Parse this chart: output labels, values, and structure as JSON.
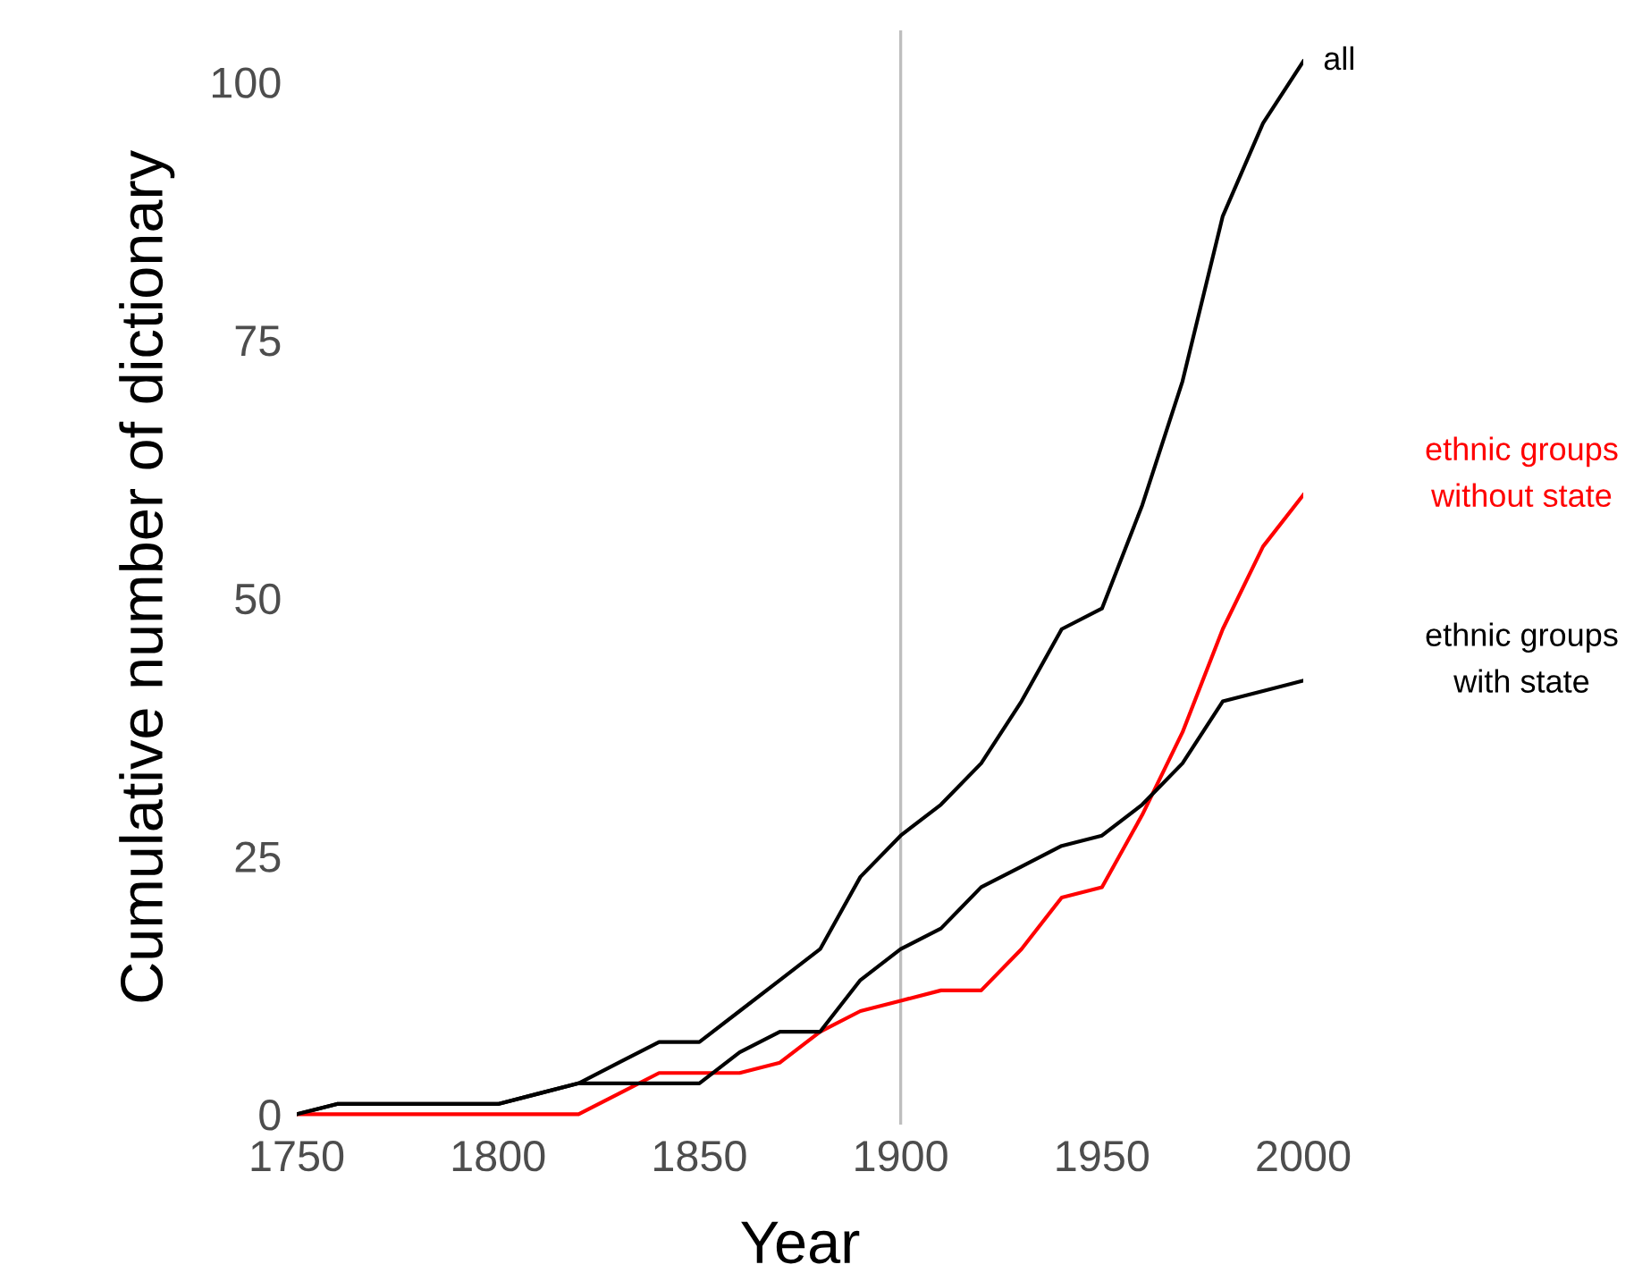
{
  "chart_data": {
    "type": "line",
    "xlabel": "Year",
    "ylabel": "Cumulative number of dictionary",
    "xlim": [
      1750,
      2000
    ],
    "ylim": [
      -1,
      105
    ],
    "xticks": [
      1750,
      1800,
      1850,
      1900,
      1950,
      2000
    ],
    "yticks": [
      0,
      25,
      50,
      75,
      100
    ],
    "grid": false,
    "legend": false,
    "x": [
      1750,
      1760,
      1770,
      1780,
      1790,
      1800,
      1810,
      1820,
      1830,
      1840,
      1850,
      1860,
      1870,
      1880,
      1890,
      1900,
      1910,
      1920,
      1930,
      1940,
      1950,
      1960,
      1970,
      1980,
      1990,
      2000
    ],
    "series": [
      {
        "name": "all",
        "color": "#000000",
        "values": [
          0,
          1,
          1,
          1,
          1,
          1,
          2,
          3,
          5,
          7,
          7,
          10,
          13,
          16,
          23,
          27,
          30,
          34,
          40,
          47,
          49,
          59,
          71,
          87,
          96,
          102
        ]
      },
      {
        "name": "ethnic groups\nwithout state",
        "color": "#ff0000",
        "values": [
          0,
          0,
          0,
          0,
          0,
          0,
          0,
          0,
          2,
          4,
          4,
          4,
          5,
          8,
          10,
          11,
          12,
          12,
          16,
          21,
          22,
          29,
          37,
          47,
          55,
          60
        ]
      },
      {
        "name": "ethnic groups\nwith state",
        "color": "#000000",
        "values": [
          0,
          1,
          1,
          1,
          1,
          1,
          2,
          3,
          3,
          3,
          3,
          6,
          8,
          8,
          13,
          16,
          18,
          22,
          24,
          26,
          27,
          30,
          34,
          40,
          41,
          42
        ]
      }
    ],
    "ref_lines": [
      {
        "axis": "x",
        "value": 1900,
        "color": "#bebebe"
      }
    ]
  }
}
